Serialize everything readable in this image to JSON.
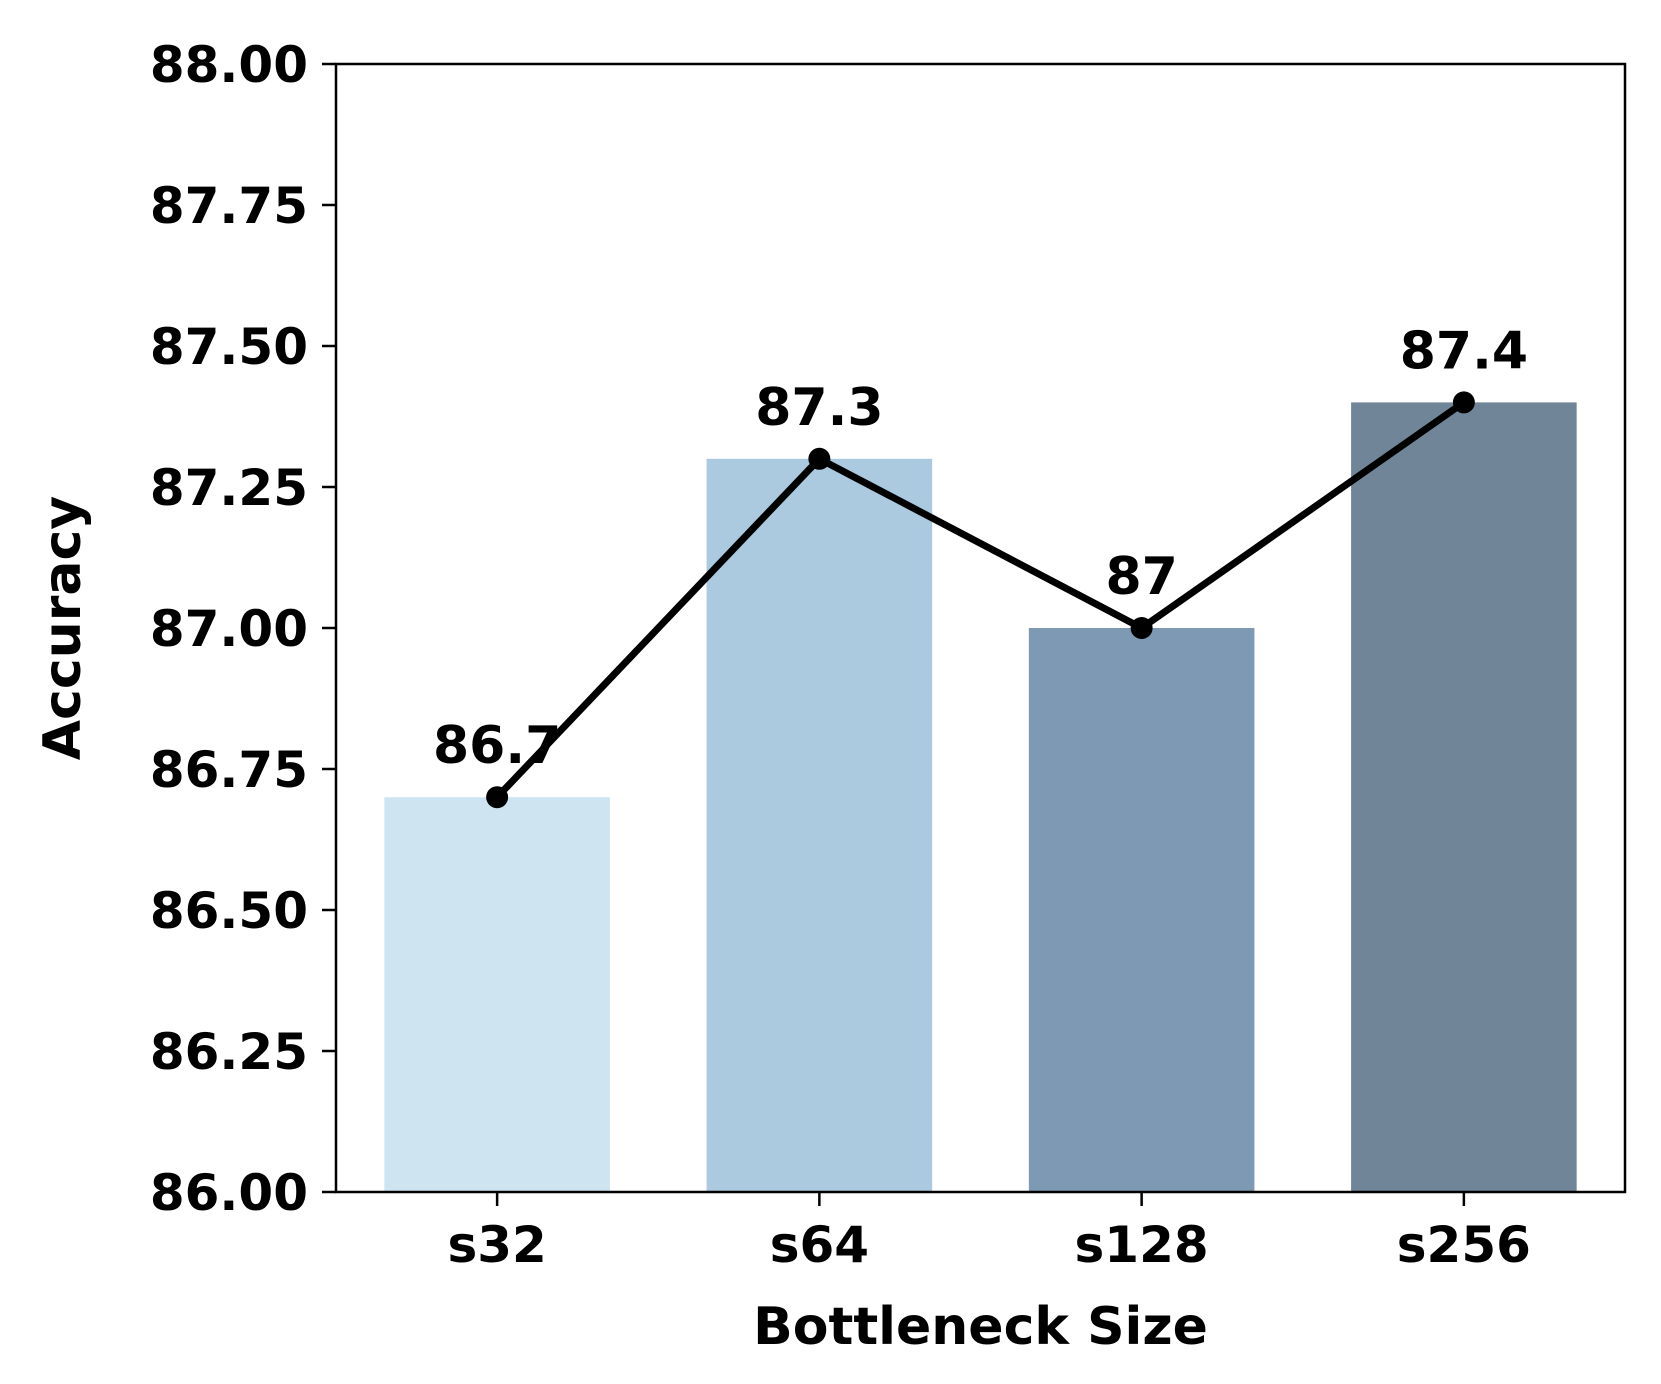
{
  "chart_data": {
    "type": "bar",
    "xlabel": "Bottleneck Size",
    "ylabel": "Accuracy",
    "categories": [
      "s32",
      "s64",
      "s128",
      "s256"
    ],
    "values": [
      86.7,
      87.3,
      87.0,
      87.4
    ],
    "data_labels": [
      "86.7",
      "87.3",
      "87",
      "87.4"
    ],
    "bar_colors": [
      "#cfe4f1",
      "#abc9df",
      "#7e99b3",
      "#718599"
    ],
    "line_color": "#000000",
    "ylim": [
      86.0,
      88.0
    ],
    "yticks": [
      86.0,
      86.25,
      86.5,
      86.75,
      87.0,
      87.25,
      87.5,
      87.75,
      88.0
    ],
    "ytick_labels": [
      "86.00",
      "86.25",
      "86.50",
      "86.75",
      "87.00",
      "87.25",
      "87.50",
      "87.75",
      "88.00"
    ],
    "overlay_line": true,
    "grid": false,
    "legend": "none"
  }
}
